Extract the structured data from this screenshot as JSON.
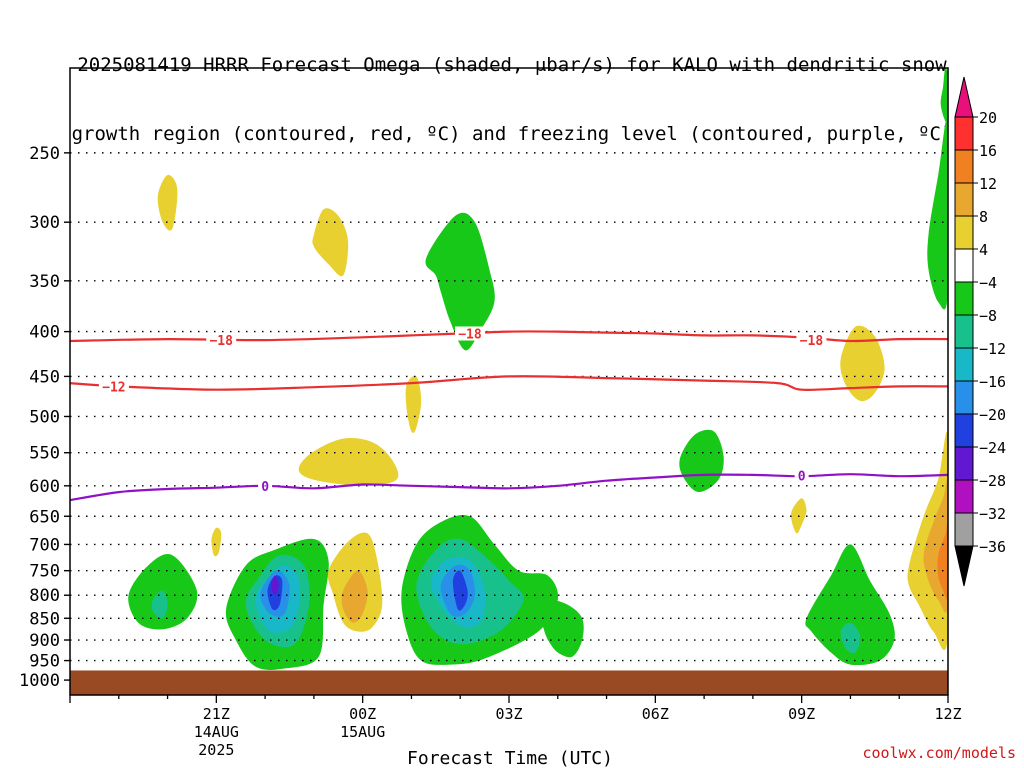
{
  "title_line1": "2025081419 HRRR Forecast Omega (shaded, μbar/s) for KALO with dendritic snow",
  "title_line2": "growth region (contoured, red, ºC) and freezing level (contoured, purple, ºC)",
  "credit": "coolwx.com/models",
  "colors": {
    "freezing_line": "#9010c8",
    "dgz_line": "#e83030",
    "ground": "#9a4a22"
  },
  "chart_data": {
    "type": "heatmap",
    "xlabel": "Forecast Time (UTC)",
    "x_ticks": [
      {
        "hour": 3,
        "label": "21Z",
        "sub1": "14AUG",
        "sub2": "2025"
      },
      {
        "hour": 6,
        "label": "00Z",
        "sub1": "15AUG",
        "sub2": ""
      },
      {
        "hour": 9,
        "label": "03Z",
        "sub1": "",
        "sub2": ""
      },
      {
        "hour": 12,
        "label": "06Z",
        "sub1": "",
        "sub2": ""
      },
      {
        "hour": 15,
        "label": "09Z",
        "sub1": "",
        "sub2": ""
      },
      {
        "hour": 18,
        "label": "12Z",
        "sub1": "",
        "sub2": ""
      }
    ],
    "x_range_hours": [
      0,
      18
    ],
    "y_axis": "pressure (mb), log scale, reversed",
    "y_ticks": [
      250,
      300,
      350,
      400,
      450,
      500,
      550,
      600,
      650,
      700,
      750,
      800,
      850,
      900,
      950,
      1000
    ],
    "y_range_mb": [
      200,
      1040
    ],
    "surface_mb": 975,
    "colorbar": {
      "unit": "μbar/s",
      "labels": [
        "20",
        "16",
        "12",
        "8",
        "4",
        "−4",
        "−8",
        "−12",
        "−16",
        "−20",
        "−24",
        "−28",
        "−32",
        "−36"
      ],
      "colors": [
        "#ff3030",
        "#f08020",
        "#e8a830",
        "#e8d030",
        "#ffffff",
        "#18c818",
        "#18c08c",
        "#18b8c8",
        "#2890e8",
        "#2040e0",
        "#6018d0",
        "#b010c0",
        "#a0a0a0"
      ],
      "top_arrow_color": "#e8107a",
      "bottom_arrow_color": "#000000"
    },
    "contours": {
      "minus18C": {
        "label": "−18",
        "x_hours": [
          0,
          2,
          4,
          6,
          7,
          8,
          9,
          10,
          11,
          12,
          13,
          14,
          15,
          16,
          17,
          18
        ],
        "p_mb": [
          410,
          408,
          409,
          406,
          404,
          402,
          400,
          400,
          401,
          402,
          404,
          404,
          406,
          410,
          408,
          408
        ]
      },
      "minus12C": {
        "label": "−12",
        "x_hours": [
          0,
          1,
          3,
          5,
          7,
          9,
          11,
          13,
          14.5,
          15,
          16,
          17,
          18
        ],
        "p_mb": [
          458,
          462,
          466,
          463,
          458,
          450,
          452,
          455,
          458,
          466,
          464,
          462,
          462
        ]
      },
      "zeroC": {
        "label": "0",
        "x_hours": [
          0,
          1,
          2,
          3,
          4,
          5,
          6,
          7,
          8,
          9,
          10,
          11,
          12,
          13,
          14,
          15,
          16,
          17,
          18
        ],
        "p_mb": [
          623,
          610,
          605,
          603,
          600,
          604,
          598,
          600,
          602,
          604,
          600,
          592,
          587,
          583,
          583,
          585,
          582,
          585,
          583
        ]
      }
    },
    "label_positions": [
      {
        "contour": "minus18C",
        "x_hour": 3.1,
        "p_mb": 409
      },
      {
        "contour": "minus18C",
        "x_hour": 8.2,
        "p_mb": 402
      },
      {
        "contour": "minus18C",
        "x_hour": 15.2,
        "p_mb": 409
      },
      {
        "contour": "minus12C",
        "x_hour": 0.9,
        "p_mb": 462
      },
      {
        "contour": "zeroC",
        "x_hour": 4.0,
        "p_mb": 600
      },
      {
        "contour": "zeroC",
        "x_hour": 15.0,
        "p_mb": 584
      }
    ],
    "omega_regions": [
      {
        "value": -6,
        "x_hours": [
          1.2,
          1.6,
          2.1,
          2.6,
          2.4,
          1.9,
          1.4
        ],
        "p_mb": [
          800,
          740,
          720,
          790,
          850,
          875,
          860
        ]
      },
      {
        "value": -10,
        "x_hours": [
          1.7,
          1.9,
          2.0,
          1.9,
          1.7
        ],
        "p_mb": [
          810,
          790,
          820,
          850,
          835
        ]
      },
      {
        "value": -6,
        "x_hours": [
          3.2,
          3.6,
          4.2,
          5.0,
          5.3,
          5.2,
          5.1,
          4.4,
          3.8,
          3.4
        ],
        "p_mb": [
          830,
          740,
          710,
          690,
          730,
          820,
          940,
          970,
          965,
          900
        ]
      },
      {
        "value": -10,
        "x_hours": [
          3.6,
          3.9,
          4.3,
          4.8,
          4.9,
          4.6,
          4.0
        ],
        "p_mb": [
          820,
          760,
          720,
          740,
          820,
          910,
          900
        ]
      },
      {
        "value": -14,
        "x_hours": [
          3.8,
          4.1,
          4.4,
          4.7,
          4.6,
          4.1
        ],
        "p_mb": [
          810,
          760,
          740,
          770,
          860,
          880
        ]
      },
      {
        "value": -18,
        "x_hours": [
          3.9,
          4.1,
          4.3,
          4.5,
          4.4,
          4.1
        ],
        "p_mb": [
          800,
          760,
          750,
          780,
          840,
          840
        ]
      },
      {
        "value": -22,
        "x_hours": [
          4.05,
          4.2,
          4.35,
          4.3,
          4.15
        ],
        "p_mb": [
          790,
          760,
          770,
          820,
          830
        ]
      },
      {
        "value": -26,
        "x_hours": [
          4.12,
          4.2,
          4.28,
          4.2
        ],
        "p_mb": [
          780,
          760,
          780,
          800
        ]
      },
      {
        "value": -6,
        "x_hours": [
          6.8,
          7.1,
          7.6,
          8.2,
          8.7,
          9.2,
          9.8,
          10.0,
          9.6,
          8.5,
          7.8,
          7.2,
          6.9
        ],
        "p_mb": [
          790,
          700,
          660,
          650,
          700,
          750,
          760,
          810,
          880,
          945,
          960,
          950,
          880
        ]
      },
      {
        "value": -10,
        "x_hours": [
          7.1,
          7.5,
          8.0,
          8.6,
          9.0,
          9.3,
          8.8,
          8.0,
          7.4
        ],
        "p_mb": [
          780,
          710,
          690,
          730,
          770,
          810,
          880,
          910,
          870
        ]
      },
      {
        "value": -14,
        "x_hours": [
          7.4,
          7.7,
          8.2,
          8.5,
          8.4,
          7.9
        ],
        "p_mb": [
          780,
          730,
          730,
          790,
          860,
          860
        ]
      },
      {
        "value": -18,
        "x_hours": [
          7.6,
          7.9,
          8.2,
          8.3,
          8.1,
          7.8
        ],
        "p_mb": [
          780,
          740,
          750,
          800,
          840,
          840
        ]
      },
      {
        "value": -22,
        "x_hours": [
          7.85,
          8.0,
          8.15,
          8.1,
          7.95
        ],
        "p_mb": [
          770,
          750,
          790,
          820,
          830
        ]
      },
      {
        "value": -6,
        "x_hours": [
          9.8,
          10.2,
          10.5,
          10.5,
          10.3,
          10.0,
          9.8,
          9.7,
          9.6
        ],
        "p_mb": [
          810,
          820,
          850,
          900,
          940,
          930,
          900,
          870,
          830
        ]
      },
      {
        "value": -6,
        "x_hours": [
          7.3,
          7.9,
          8.3,
          8.6,
          8.7,
          8.4,
          8.1,
          7.8,
          7.6,
          7.5
        ],
        "p_mb": [
          330,
          295,
          300,
          340,
          370,
          400,
          420,
          390,
          360,
          345
        ]
      },
      {
        "value": -6,
        "x_hours": [
          12.5,
          12.8,
          13.2,
          13.4,
          13.3,
          12.9,
          12.6
        ],
        "p_mb": [
          560,
          525,
          520,
          555,
          590,
          610,
          590
        ]
      },
      {
        "value": -6,
        "x_hours": [
          15.1,
          15.6,
          16.0,
          16.4,
          16.8,
          16.9,
          16.6,
          16.0,
          15.6,
          15.2
        ],
        "p_mb": [
          850,
          760,
          700,
          770,
          840,
          900,
          950,
          960,
          930,
          880
        ]
      },
      {
        "value": -10,
        "x_hours": [
          15.8,
          16.0,
          16.2,
          16.1,
          15.9
        ],
        "p_mb": [
          880,
          860,
          890,
          930,
          920
        ]
      },
      {
        "value": -6,
        "x_hours": [
          17.9,
          17.95,
          18.05,
          18.0,
          17.95,
          17.85
        ],
        "p_mb": [
          210,
          200,
          210,
          225,
          230,
          220
        ]
      },
      {
        "value": -6,
        "x_hours": [
          17.6,
          17.8,
          18.0,
          18.0,
          17.8,
          17.6
        ],
        "p_mb": [
          310,
          265,
          230,
          360,
          370,
          340
        ]
      },
      {
        "value": 6,
        "x_hours": [
          1.8,
          2.0,
          2.2,
          2.1,
          1.9
        ],
        "p_mb": [
          280,
          265,
          275,
          305,
          300
        ]
      },
      {
        "value": 6,
        "x_hours": [
          5.0,
          5.2,
          5.5,
          5.7,
          5.6,
          5.3,
          5.0
        ],
        "p_mb": [
          310,
          290,
          295,
          315,
          345,
          335,
          320
        ]
      },
      {
        "value": 6,
        "x_hours": [
          6.9,
          7.1,
          7.2,
          7.1,
          7.0,
          6.9
        ],
        "p_mb": [
          460,
          450,
          480,
          515,
          520,
          490
        ]
      },
      {
        "value": 6,
        "x_hours": [
          4.7,
          5.0,
          5.6,
          6.2,
          6.6,
          6.7,
          6.1,
          5.3,
          4.8
        ],
        "p_mb": [
          570,
          548,
          530,
          535,
          560,
          590,
          600,
          595,
          585
        ]
      },
      {
        "value": 6,
        "x_hours": [
          2.9,
          3.0,
          3.1,
          3.05,
          2.95
        ],
        "p_mb": [
          690,
          670,
          680,
          715,
          720
        ]
      },
      {
        "value": 6,
        "x_hours": [
          5.3,
          5.7,
          6.1,
          6.3,
          6.4,
          6.2,
          5.9,
          5.6,
          5.4
        ],
        "p_mb": [
          750,
          695,
          680,
          730,
          820,
          870,
          880,
          860,
          800
        ]
      },
      {
        "value": 10,
        "x_hours": [
          5.6,
          5.9,
          6.1,
          6.0,
          5.8,
          5.6
        ],
        "p_mb": [
          790,
          750,
          790,
          840,
          860,
          830
        ]
      },
      {
        "value": 6,
        "x_hours": [
          15.8,
          16.1,
          16.5,
          16.7,
          16.5,
          16.2,
          15.9
        ],
        "p_mb": [
          430,
          395,
          405,
          440,
          470,
          480,
          460
        ]
      },
      {
        "value": 6,
        "x_hours": [
          14.8,
          15.0,
          15.1,
          15.0,
          14.9,
          14.8
        ],
        "p_mb": [
          640,
          620,
          640,
          665,
          680,
          660
        ]
      },
      {
        "value": 6,
        "x_hours": [
          17.2,
          17.5,
          17.8,
          18.0,
          18.0,
          17.7,
          17.4,
          17.2
        ],
        "p_mb": [
          740,
          650,
          590,
          530,
          890,
          880,
          820,
          780
        ]
      },
      {
        "value": 10,
        "x_hours": [
          17.5,
          17.7,
          17.9,
          18.0,
          18.0,
          17.8,
          17.6
        ],
        "p_mb": [
          720,
          660,
          620,
          600,
          820,
          810,
          770
        ]
      },
      {
        "value": 14,
        "x_hours": [
          17.8,
          17.95,
          18.0,
          18.0,
          17.9,
          17.8
        ],
        "p_mb": [
          720,
          680,
          660,
          800,
          790,
          760
        ]
      }
    ]
  }
}
